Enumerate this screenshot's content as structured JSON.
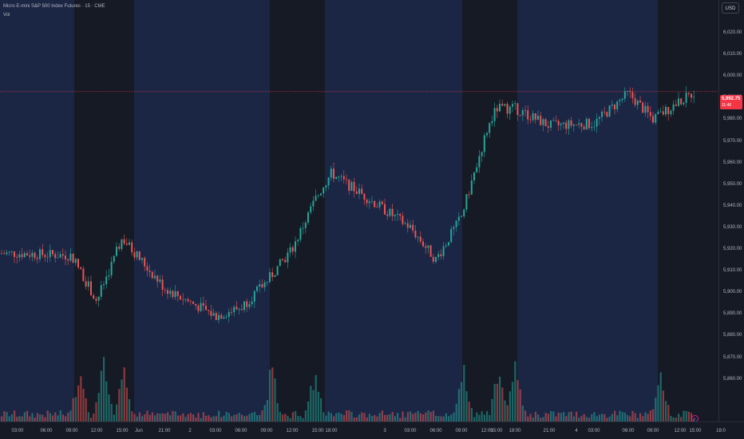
{
  "legend": {
    "title": "Micro E-mini S&P 500 Index Futures · 15 · CME",
    "volume_label": "Vol"
  },
  "currency": "USD",
  "last_price": {
    "value": "5,992.75",
    "countdown": "11:46"
  },
  "colors": {
    "up": "#26a69a",
    "down": "#ef5350",
    "session_band": "#1b2644",
    "background": "#161a25",
    "last_price_line": "#f23645"
  },
  "price_axis": {
    "ticks": [
      "6,020.00",
      "6,010.00",
      "6,000.00",
      "5,990.00",
      "5,980.00",
      "5,970.00",
      "5,960.00",
      "5,950.00",
      "5,940.00",
      "5,930.00",
      "5,920.00",
      "5,910.00",
      "5,900.00",
      "5,890.00",
      "5,880.00",
      "5,870.00",
      "5,860.00"
    ]
  },
  "time_axis": {
    "ticks": [
      "03:00",
      "06:00",
      "09:00",
      "12:00",
      "15:00",
      "Jun",
      "21:00",
      "2",
      "03:00",
      "06:00",
      "09:00",
      "12:00",
      "15:00",
      "18:00",
      "3",
      "03:00",
      "06:00",
      "09:00",
      "12:00",
      "15:00",
      "18:00",
      "21:00",
      "4",
      "03:00",
      "06:00",
      "09:00",
      "12:00",
      "15:00",
      "18:0"
    ]
  },
  "chart_data": {
    "type": "candlestick",
    "interval": "15",
    "yunits": "USD",
    "ylim": [
      5857,
      6028
    ],
    "last_price": 5992.75,
    "grid": false,
    "trend_anchors": [
      {
        "time": "May 30 03:00",
        "price": 5918
      },
      {
        "time": "May 30 09:00",
        "price": 5917
      },
      {
        "time": "May 30 12:00",
        "price": 5896
      },
      {
        "time": "May 30 15:00",
        "price": 5925
      },
      {
        "time": "Jun 1 21:00",
        "price": 5902
      },
      {
        "time": "Jun 2 03:00",
        "price": 5889
      },
      {
        "time": "Jun 2 06:00",
        "price": 5893
      },
      {
        "time": "Jun 2 09:00",
        "price": 5905
      },
      {
        "time": "Jun 2 12:00",
        "price": 5920
      },
      {
        "time": "Jun 2 15:00",
        "price": 5945
      },
      {
        "time": "Jun 2 18:00",
        "price": 5955
      },
      {
        "time": "Jun 3 03:00",
        "price": 5930
      },
      {
        "time": "Jun 3 06:00",
        "price": 5915
      },
      {
        "time": "Jun 3 09:00",
        "price": 5935
      },
      {
        "time": "Jun 3 12:00",
        "price": 5975
      },
      {
        "time": "Jun 3 15:00",
        "price": 5985
      },
      {
        "time": "Jun 3 18:00",
        "price": 5985
      },
      {
        "time": "Jun 3 21:00",
        "price": 5977
      },
      {
        "time": "Jun 4 03:00",
        "price": 5978
      },
      {
        "time": "Jun 4 06:00",
        "price": 5992
      },
      {
        "time": "Jun 4 09:00",
        "price": 5980
      },
      {
        "time": "Jun 4 12:00",
        "price": 5992.75
      }
    ]
  }
}
